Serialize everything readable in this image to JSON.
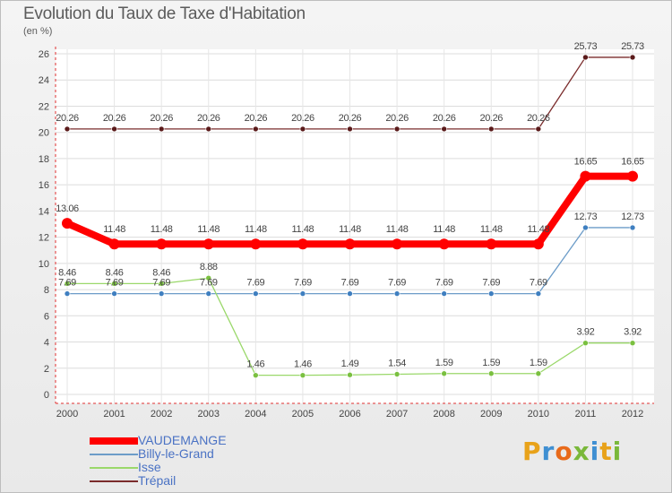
{
  "title": "Evolution du Taux de Taxe d'Habitation",
  "unit": "(en %)",
  "brand": {
    "text": "Proxiti",
    "letters": [
      "P",
      "r",
      "o",
      "x",
      "i",
      "t",
      "i"
    ],
    "colors": [
      "#e8a21a",
      "#3f8fd2",
      "#e86a1a",
      "#7ab83a",
      "#3f8fd2",
      "#e8a21a",
      "#7ab83a"
    ]
  },
  "chart_data": {
    "type": "line",
    "title": "Evolution du Taux de Taxe d'Habitation",
    "ylabel": "(en %)",
    "xlabel": "",
    "ylim": [
      0,
      26
    ],
    "yticks": [
      0,
      2,
      4,
      6,
      8,
      10,
      12,
      14,
      16,
      18,
      20,
      22,
      24,
      26
    ],
    "categories": [
      "2000",
      "2001",
      "2002",
      "2003",
      "2004",
      "2005",
      "2006",
      "2007",
      "2008",
      "2009",
      "2010",
      "2011",
      "2012"
    ],
    "grid": true,
    "legend": "bottom-left",
    "series": [
      {
        "name": "Trépail",
        "color": "#7a2b2b",
        "dot": "#5a1a1a",
        "width": 1.3,
        "dotRadius": 3,
        "values": [
          20.26,
          20.26,
          20.26,
          20.26,
          20.26,
          20.26,
          20.26,
          20.26,
          20.26,
          20.26,
          20.26,
          25.73,
          25.73
        ],
        "labels": [
          "20.26",
          "20.26",
          "20.26",
          "20.26",
          "20.26",
          "20.26",
          "20.26",
          "20.26",
          "20.26",
          "20.26",
          "20.26",
          "25.73",
          "25.73"
        ]
      },
      {
        "name": "VAUDEMANGE",
        "color": "#ff0000",
        "dot": "#ff0000",
        "width": 8,
        "dotRadius": 6,
        "values": [
          13.06,
          11.48,
          11.48,
          11.48,
          11.48,
          11.48,
          11.48,
          11.48,
          11.48,
          11.48,
          11.48,
          16.65,
          16.65
        ],
        "labels": [
          "13.06",
          "11.48",
          "11.48",
          "11.48",
          "11.48",
          "11.48",
          "11.48",
          "11.48",
          "11.48",
          "11.48",
          "11.48",
          "16.65",
          "16.65"
        ]
      },
      {
        "name": "Billy-le-Grand",
        "color": "#6c9cc8",
        "dot": "#3f7fc0",
        "width": 1.3,
        "dotRadius": 3,
        "values": [
          7.69,
          7.69,
          7.69,
          7.69,
          7.69,
          7.69,
          7.69,
          7.69,
          7.69,
          7.69,
          7.69,
          12.73,
          12.73
        ],
        "labels": [
          "7.69",
          "7.69",
          "7.69",
          "7.69",
          "7.69",
          "7.69",
          "7.69",
          "7.69",
          "7.69",
          "7.69",
          "7.69",
          "12.73",
          "12.73"
        ]
      },
      {
        "name": "Isse",
        "color": "#9ad86a",
        "dot": "#7ac040",
        "width": 1.3,
        "dotRadius": 3,
        "values": [
          8.46,
          8.46,
          8.46,
          8.88,
          1.46,
          1.46,
          1.49,
          1.54,
          1.59,
          1.59,
          1.59,
          3.92,
          3.92
        ],
        "labels": [
          "8.46",
          "8.46",
          "8.46",
          "8.88",
          "1.46",
          "1.46",
          "1.49",
          "1.54",
          "1.59",
          "1.59",
          "1.59",
          "3.92",
          "3.92"
        ]
      }
    ],
    "legend_order": [
      "VAUDEMANGE",
      "Billy-le-Grand",
      "Isse",
      "Trépail"
    ]
  }
}
